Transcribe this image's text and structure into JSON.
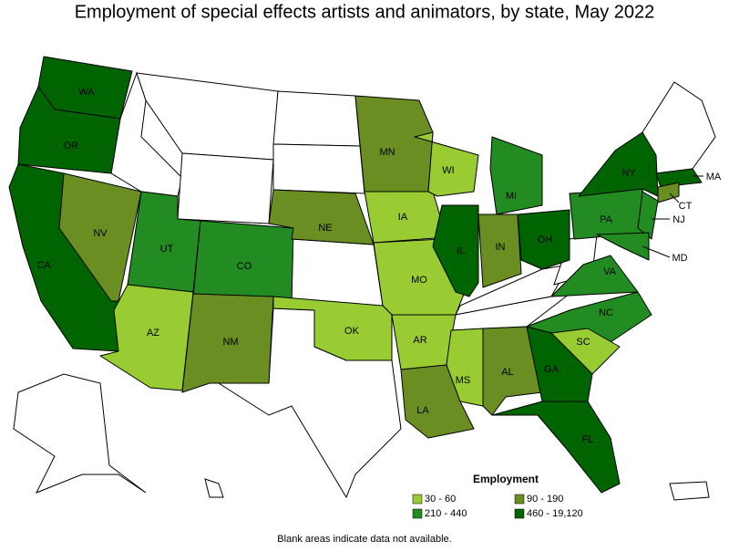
{
  "title": "Employment of special effects artists and animators, by state, May 2022",
  "legend": {
    "title": "Employment",
    "items": [
      {
        "label": "30 - 60",
        "color": "#99cc33"
      },
      {
        "label": "90 - 190",
        "color": "#6b8e23"
      },
      {
        "label": "210 - 440",
        "color": "#228b22"
      },
      {
        "label": "460 - 19,120",
        "color": "#006400"
      }
    ]
  },
  "states": [
    {
      "label": "WA",
      "class": 3
    },
    {
      "label": "OR",
      "class": 3
    },
    {
      "label": "CA",
      "class": 3
    },
    {
      "label": "NV",
      "class": 1
    },
    {
      "label": "UT",
      "class": 2
    },
    {
      "label": "AZ",
      "class": 0
    },
    {
      "label": "CO",
      "class": 2
    },
    {
      "label": "NM",
      "class": 1
    },
    {
      "label": "NE",
      "class": 1
    },
    {
      "label": "MN",
      "class": 1
    },
    {
      "label": "IA",
      "class": 0
    },
    {
      "label": "MO",
      "class": 0
    },
    {
      "label": "OK",
      "class": 0
    },
    {
      "label": "AR",
      "class": 0
    },
    {
      "label": "LA",
      "class": 1
    },
    {
      "label": "MS",
      "class": 0
    },
    {
      "label": "AL",
      "class": 1
    },
    {
      "label": "WI",
      "class": 0
    },
    {
      "label": "IL",
      "class": 3
    },
    {
      "label": "IN",
      "class": 1
    },
    {
      "label": "MI",
      "class": 2
    },
    {
      "label": "OH",
      "class": 3
    },
    {
      "label": "VA",
      "class": 2
    },
    {
      "label": "NC",
      "class": 2
    },
    {
      "label": "SC",
      "class": 0
    },
    {
      "label": "GA",
      "class": 3
    },
    {
      "label": "FL",
      "class": 3
    },
    {
      "label": "PA",
      "class": 2
    },
    {
      "label": "NY",
      "class": 3
    },
    {
      "label": "NJ",
      "class": 2
    },
    {
      "label": "MD",
      "class": 2
    },
    {
      "label": "MA",
      "class": 3
    },
    {
      "label": "CT",
      "class": 1
    }
  ],
  "note": "Blank areas indicate data not available."
}
